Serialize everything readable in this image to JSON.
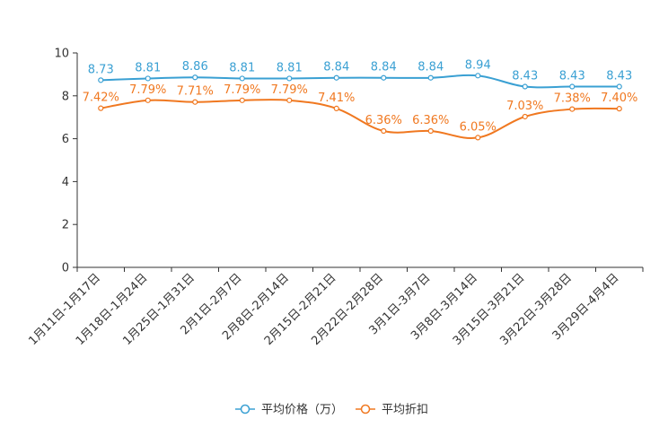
{
  "chart_data": {
    "type": "line",
    "categories": [
      "1月11日-1月17日",
      "1月18日-1月24日",
      "1月25日-1月31日",
      "2月1日-2月7日",
      "2月8日-2月14日",
      "2月15日-2月21日",
      "2月22日-2月28日",
      "3月1日-3月7日",
      "3月8日-3月14日",
      "3月15日-3月21日",
      "3月22日-3月28日",
      "3月29日-4月4日"
    ],
    "ylim": [
      0,
      10
    ],
    "yticks": [
      0,
      2,
      4,
      6,
      8,
      10
    ],
    "ytick_labels": [
      "0",
      "2",
      "4",
      "6",
      "8",
      "10"
    ],
    "series": [
      {
        "name": "平均价格（万）",
        "color": "#3aa0d3",
        "values": [
          8.73,
          8.81,
          8.86,
          8.81,
          8.81,
          8.84,
          8.84,
          8.84,
          8.94,
          8.43,
          8.43,
          8.43
        ],
        "labels": [
          "8.73",
          "8.81",
          "8.86",
          "8.81",
          "8.81",
          "8.84",
          "8.84",
          "8.84",
          "8.94",
          "8.43",
          "8.43",
          "8.43"
        ]
      },
      {
        "name": "平均折扣",
        "color": "#f07820",
        "values": [
          7.42,
          7.79,
          7.71,
          7.79,
          7.79,
          7.41,
          6.36,
          6.36,
          6.05,
          7.03,
          7.38,
          7.4
        ],
        "labels": [
          "7.42%",
          "7.79%",
          "7.71%",
          "7.79%",
          "7.79%",
          "7.41%",
          "6.36%",
          "6.36%",
          "6.05%",
          "7.03%",
          "7.38%",
          "7.40%"
        ]
      }
    ],
    "legend_position": "bottom-center"
  }
}
